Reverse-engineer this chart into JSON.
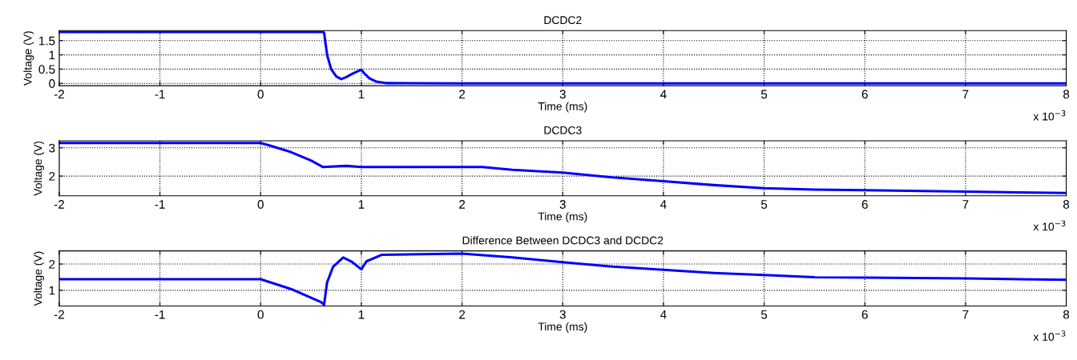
{
  "chart_data": [
    {
      "type": "line",
      "title": "DCDC2",
      "xlabel": "Time (ms)",
      "ylabel": "Voltage (V)",
      "annotations": [
        "x 10$^{−3}$"
      ],
      "xlim": [
        -2,
        8
      ],
      "xticks": [
        -2,
        -1,
        0,
        1,
        2,
        3,
        4,
        5,
        6,
        7,
        8
      ],
      "ylim": [
        -0.08,
        1.85
      ],
      "yticks": [
        0,
        0.5,
        1,
        1.5
      ],
      "grid": true,
      "line_style": "solid",
      "series": [
        {
          "color": "#0000ff",
          "x": [
            -2,
            0,
            0.62,
            0.63,
            0.66,
            0.7,
            0.75,
            0.8,
            0.85,
            0.9,
            0.95,
            1.0,
            1.03,
            1.08,
            1.15,
            1.25,
            2,
            8
          ],
          "values": [
            1.8,
            1.8,
            1.8,
            1.78,
            1.0,
            0.5,
            0.25,
            0.15,
            0.22,
            0.32,
            0.4,
            0.48,
            0.35,
            0.18,
            0.06,
            0.01,
            0.0,
            0.0
          ]
        }
      ]
    },
    {
      "type": "line",
      "title": "DCDC3",
      "xlabel": "Time (ms)",
      "ylabel": "Voltage (V)",
      "annotations": [
        "x 10$^{−3}$"
      ],
      "xlim": [
        -2,
        8
      ],
      "xticks": [
        -2,
        -1,
        0,
        1,
        2,
        3,
        4,
        5,
        6,
        7,
        8
      ],
      "ylim": [
        1.3,
        3.25
      ],
      "yticks": [
        2,
        3
      ],
      "grid": true,
      "line_style": "solid",
      "series": [
        {
          "color": "#0000ff",
          "x": [
            -2,
            0,
            0.1,
            0.3,
            0.5,
            0.62,
            0.85,
            1,
            2.2,
            2.5,
            3,
            3.5,
            4,
            4.5,
            5,
            5.5,
            6,
            7,
            8
          ],
          "values": [
            3.17,
            3.17,
            3.07,
            2.85,
            2.55,
            2.32,
            2.36,
            2.32,
            2.32,
            2.22,
            2.12,
            1.95,
            1.82,
            1.68,
            1.57,
            1.52,
            1.5,
            1.45,
            1.4
          ]
        }
      ]
    },
    {
      "type": "line",
      "title": "Difference Between DCDC3 and DCDC2",
      "xlabel": "Time (ms)",
      "ylabel": "Voltage (V)",
      "annotations": [
        "x 10$^{−3}$"
      ],
      "xlim": [
        -2,
        8
      ],
      "xticks": [
        -2,
        -1,
        0,
        1,
        2,
        3,
        4,
        5,
        6,
        7,
        8
      ],
      "ylim": [
        0.4,
        2.5
      ],
      "yticks": [
        1,
        2
      ],
      "grid": true,
      "line_style": "solid",
      "series": [
        {
          "color": "#0000ff",
          "x": [
            -2,
            0,
            0.3,
            0.6,
            0.63,
            0.66,
            0.72,
            0.82,
            0.9,
            1.0,
            1.05,
            1.2,
            2,
            2.5,
            3,
            3.5,
            4,
            4.5,
            5,
            5.5,
            6,
            7,
            8
          ],
          "values": [
            1.42,
            1.42,
            1.05,
            0.55,
            0.45,
            1.3,
            1.9,
            2.25,
            2.1,
            1.8,
            2.1,
            2.35,
            2.4,
            2.25,
            2.07,
            1.9,
            1.78,
            1.66,
            1.58,
            1.5,
            1.48,
            1.45,
            1.4
          ]
        }
      ]
    }
  ]
}
